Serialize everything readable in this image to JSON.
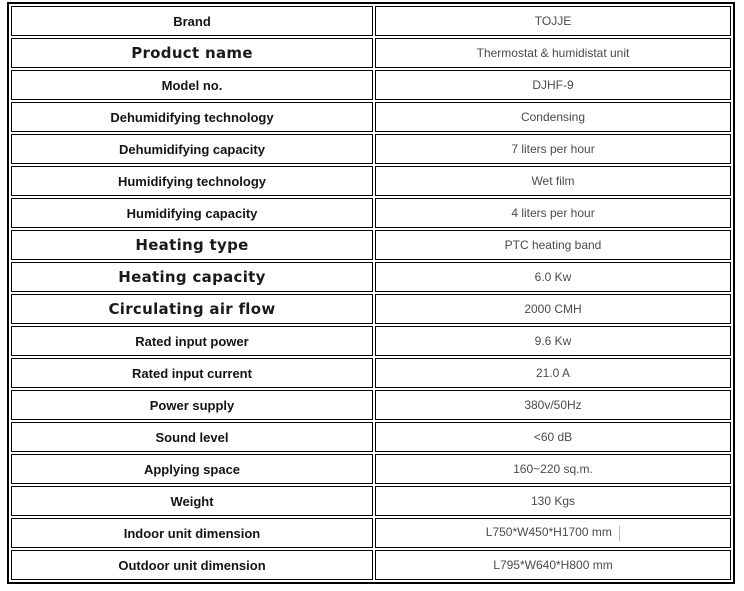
{
  "table": {
    "rows": [
      {
        "label": "Brand",
        "value": "TOJJE",
        "label_style": "normal"
      },
      {
        "label": "Product name",
        "value": "Thermostat & humidistat unit",
        "label_style": "large"
      },
      {
        "label": "Model no.",
        "value": "DJHF-9",
        "label_style": "normal"
      },
      {
        "label": "Dehumidifying technology",
        "value": "Condensing",
        "label_style": "normal"
      },
      {
        "label": "Dehumidifying capacity",
        "value": "7 liters per hour",
        "label_style": "normal"
      },
      {
        "label": "Humidifying technology",
        "value": "Wet film",
        "label_style": "normal"
      },
      {
        "label": "Humidifying capacity",
        "value": "4 liters per hour",
        "label_style": "normal"
      },
      {
        "label": "Heating type",
        "value": "PTC heating band",
        "label_style": "large"
      },
      {
        "label": "Heating capacity",
        "value": "6.0 Kw",
        "label_style": "large"
      },
      {
        "label": "Circulating air flow",
        "value": "2000 CMH",
        "label_style": "large"
      },
      {
        "label": "Rated input power",
        "value": "9.6 Kw",
        "label_style": "normal"
      },
      {
        "label": "Rated input current",
        "value": "21.0 A",
        "label_style": "normal"
      },
      {
        "label": "Power supply",
        "value": "380v/50Hz",
        "label_style": "normal"
      },
      {
        "label": "Sound level",
        "value": "<60 dB",
        "label_style": "normal"
      },
      {
        "label": "Applying space",
        "value": "160~220 sq.m.",
        "label_style": "normal"
      },
      {
        "label": "Weight",
        "value": "130 Kgs",
        "label_style": "normal"
      },
      {
        "label": "Indoor unit dimension",
        "value": "L750*W450*H1700 mm",
        "label_style": "normal",
        "caret": true
      },
      {
        "label": "Outdoor unit dimension",
        "value": "L795*W640*H800 mm",
        "label_style": "normal"
      }
    ],
    "colors": {
      "border": "#000000",
      "label_text": "#141414",
      "value_text": "#4a4a4a",
      "background": "#ffffff"
    }
  }
}
